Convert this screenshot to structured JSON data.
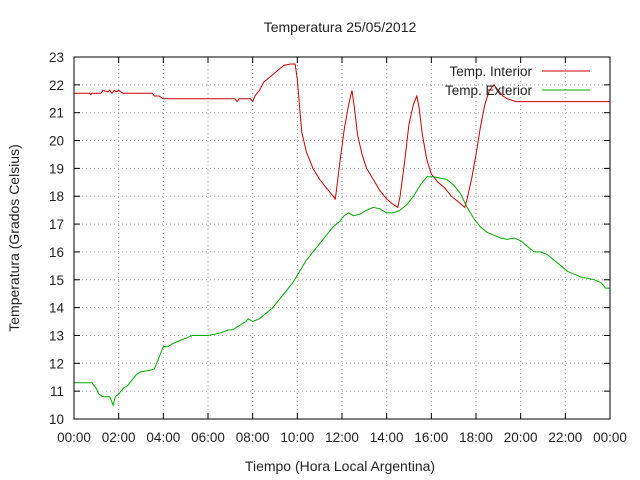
{
  "chart_data": {
    "type": "line",
    "title": "Temperatura 25/05/2012",
    "xlabel": "Tiempo (Hora Local Argentina)",
    "ylabel": "Temperatura (Grados Celsius)",
    "xlim": [
      0,
      24
    ],
    "ylim": [
      10,
      23
    ],
    "x_ticks": [
      0,
      2,
      4,
      6,
      8,
      10,
      12,
      14,
      16,
      18,
      20,
      22,
      24
    ],
    "x_tick_labels": [
      "00:00",
      "02:00",
      "04:00",
      "06:00",
      "08:00",
      "10:00",
      "12:00",
      "14:00",
      "16:00",
      "18:00",
      "20:00",
      "22:00",
      "00:00"
    ],
    "y_ticks": [
      10,
      11,
      12,
      13,
      14,
      15,
      16,
      17,
      18,
      19,
      20,
      21,
      22,
      23
    ],
    "y_tick_labels": [
      "10",
      "11",
      "12",
      "13",
      "14",
      "15",
      "16",
      "17",
      "18",
      "19",
      "20",
      "21",
      "22",
      "23"
    ],
    "grid": true,
    "legend_position": "top-right",
    "series": [
      {
        "name": "Temp. Interior",
        "color": "#cc0000",
        "points": [
          [
            0.0,
            21.7
          ],
          [
            0.7,
            21.7
          ],
          [
            0.75,
            21.65
          ],
          [
            0.8,
            21.7
          ],
          [
            1.2,
            21.7
          ],
          [
            1.3,
            21.8
          ],
          [
            1.5,
            21.75
          ],
          [
            1.6,
            21.8
          ],
          [
            1.7,
            21.7
          ],
          [
            1.8,
            21.8
          ],
          [
            1.9,
            21.75
          ],
          [
            2.0,
            21.8
          ],
          [
            2.1,
            21.75
          ],
          [
            2.2,
            21.7
          ],
          [
            3.5,
            21.7
          ],
          [
            3.6,
            21.6
          ],
          [
            3.8,
            21.6
          ],
          [
            4.0,
            21.5
          ],
          [
            7.2,
            21.5
          ],
          [
            7.3,
            21.4
          ],
          [
            7.4,
            21.5
          ],
          [
            7.9,
            21.5
          ],
          [
            8.0,
            21.4
          ],
          [
            8.1,
            21.6
          ],
          [
            8.3,
            21.8
          ],
          [
            8.5,
            22.1
          ],
          [
            8.8,
            22.3
          ],
          [
            9.1,
            22.5
          ],
          [
            9.4,
            22.7
          ],
          [
            9.7,
            22.75
          ],
          [
            9.9,
            22.75
          ],
          [
            10.0,
            22.2
          ],
          [
            10.1,
            21.2
          ],
          [
            10.2,
            20.3
          ],
          [
            10.4,
            19.6
          ],
          [
            10.7,
            19.0
          ],
          [
            11.0,
            18.6
          ],
          [
            11.3,
            18.3
          ],
          [
            11.5,
            18.1
          ],
          [
            11.7,
            17.9
          ],
          [
            11.75,
            18.2
          ],
          [
            11.9,
            19.2
          ],
          [
            12.1,
            20.4
          ],
          [
            12.3,
            21.3
          ],
          [
            12.45,
            21.8
          ],
          [
            12.55,
            21.2
          ],
          [
            12.7,
            20.2
          ],
          [
            12.9,
            19.5
          ],
          [
            13.1,
            19.0
          ],
          [
            13.4,
            18.6
          ],
          [
            13.7,
            18.2
          ],
          [
            14.0,
            17.9
          ],
          [
            14.3,
            17.7
          ],
          [
            14.5,
            17.6
          ],
          [
            14.6,
            18.0
          ],
          [
            14.8,
            19.2
          ],
          [
            15.0,
            20.6
          ],
          [
            15.2,
            21.3
          ],
          [
            15.35,
            21.6
          ],
          [
            15.45,
            21.2
          ],
          [
            15.6,
            20.2
          ],
          [
            15.8,
            19.3
          ],
          [
            16.0,
            18.8
          ],
          [
            16.3,
            18.5
          ],
          [
            16.6,
            18.3
          ],
          [
            16.9,
            18.0
          ],
          [
            17.2,
            17.8
          ],
          [
            17.5,
            17.6
          ],
          [
            17.6,
            17.9
          ],
          [
            17.8,
            18.6
          ],
          [
            18.0,
            19.5
          ],
          [
            18.2,
            20.5
          ],
          [
            18.4,
            21.3
          ],
          [
            18.6,
            21.8
          ],
          [
            18.8,
            22.0
          ],
          [
            19.0,
            21.8
          ],
          [
            19.2,
            21.6
          ],
          [
            19.4,
            21.5
          ],
          [
            19.8,
            21.4
          ],
          [
            24.0,
            21.4
          ]
        ]
      },
      {
        "name": "Temp. Exterior",
        "color": "#00aa00",
        "points": [
          [
            0.0,
            11.3
          ],
          [
            0.8,
            11.3
          ],
          [
            1.0,
            11.1
          ],
          [
            1.1,
            10.9
          ],
          [
            1.3,
            10.8
          ],
          [
            1.6,
            10.8
          ],
          [
            1.7,
            10.6
          ],
          [
            1.75,
            10.5
          ],
          [
            1.85,
            10.8
          ],
          [
            2.0,
            10.9
          ],
          [
            2.2,
            11.1
          ],
          [
            2.4,
            11.2
          ],
          [
            2.6,
            11.4
          ],
          [
            2.8,
            11.6
          ],
          [
            3.0,
            11.7
          ],
          [
            3.4,
            11.75
          ],
          [
            3.6,
            11.8
          ],
          [
            3.8,
            12.2
          ],
          [
            4.0,
            12.6
          ],
          [
            4.2,
            12.6
          ],
          [
            4.4,
            12.7
          ],
          [
            4.7,
            12.8
          ],
          [
            5.0,
            12.9
          ],
          [
            5.3,
            13.0
          ],
          [
            6.0,
            13.0
          ],
          [
            6.3,
            13.05
          ],
          [
            6.6,
            13.1
          ],
          [
            6.9,
            13.2
          ],
          [
            7.1,
            13.2
          ],
          [
            7.3,
            13.3
          ],
          [
            7.5,
            13.4
          ],
          [
            7.7,
            13.5
          ],
          [
            7.8,
            13.6
          ],
          [
            8.0,
            13.5
          ],
          [
            8.3,
            13.6
          ],
          [
            8.6,
            13.8
          ],
          [
            8.9,
            14.0
          ],
          [
            9.2,
            14.3
          ],
          [
            9.5,
            14.6
          ],
          [
            9.8,
            14.9
          ],
          [
            10.1,
            15.3
          ],
          [
            10.4,
            15.7
          ],
          [
            10.7,
            16.0
          ],
          [
            11.0,
            16.3
          ],
          [
            11.3,
            16.6
          ],
          [
            11.6,
            16.9
          ],
          [
            11.9,
            17.1
          ],
          [
            12.1,
            17.3
          ],
          [
            12.3,
            17.4
          ],
          [
            12.5,
            17.3
          ],
          [
            12.8,
            17.35
          ],
          [
            13.1,
            17.5
          ],
          [
            13.4,
            17.6
          ],
          [
            13.7,
            17.55
          ],
          [
            14.0,
            17.4
          ],
          [
            14.3,
            17.4
          ],
          [
            14.6,
            17.5
          ],
          [
            14.9,
            17.7
          ],
          [
            15.2,
            18.0
          ],
          [
            15.5,
            18.4
          ],
          [
            15.8,
            18.7
          ],
          [
            16.1,
            18.7
          ],
          [
            16.4,
            18.65
          ],
          [
            16.7,
            18.6
          ],
          [
            17.0,
            18.4
          ],
          [
            17.3,
            18.1
          ],
          [
            17.6,
            17.6
          ],
          [
            17.9,
            17.2
          ],
          [
            18.2,
            16.9
          ],
          [
            18.5,
            16.7
          ],
          [
            18.8,
            16.6
          ],
          [
            19.1,
            16.5
          ],
          [
            19.4,
            16.45
          ],
          [
            19.7,
            16.5
          ],
          [
            20.0,
            16.4
          ],
          [
            20.3,
            16.2
          ],
          [
            20.6,
            16.0
          ],
          [
            20.9,
            16.0
          ],
          [
            21.2,
            15.9
          ],
          [
            21.5,
            15.7
          ],
          [
            21.8,
            15.5
          ],
          [
            22.1,
            15.3
          ],
          [
            22.4,
            15.2
          ],
          [
            22.7,
            15.1
          ],
          [
            23.0,
            15.05
          ],
          [
            23.3,
            15.0
          ],
          [
            23.6,
            14.9
          ],
          [
            23.8,
            14.7
          ],
          [
            24.0,
            14.7
          ]
        ]
      }
    ]
  }
}
